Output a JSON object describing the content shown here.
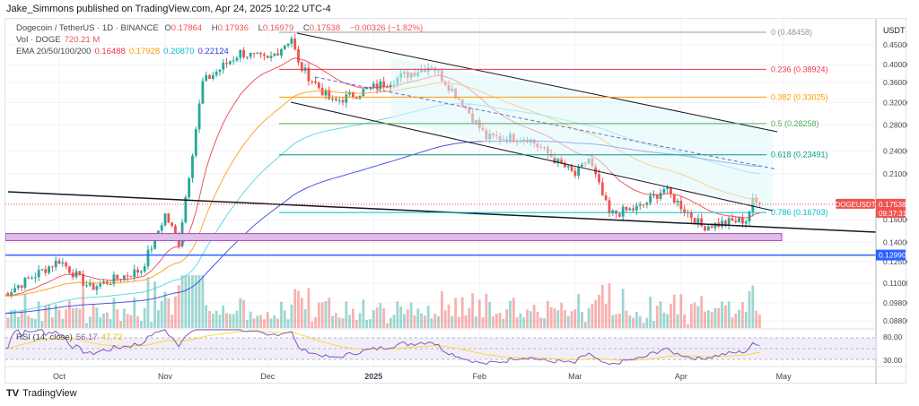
{
  "header": {
    "published": "Jake_Simmons published on TradingView.com, Apr 24, 2025 10:22 UTC-4"
  },
  "legend": {
    "symbol": "Dogecoin / TetherUS · 1D · BINANCE",
    "o_label": "O",
    "o": "0.17864",
    "h_label": "H",
    "h": "0.17936",
    "l_label": "L",
    "l": "0.16979",
    "c_label": "C",
    "c": "0.17538",
    "change": "−0.00326 (−1.82%)",
    "vol_label": "Vol · DOGE",
    "vol": "720.21 M",
    "ema_label": "EMA 20/50/100/200",
    "ema": [
      "0.16488",
      "0.17928",
      "0.20870",
      "0.22124"
    ],
    "rsi_label": "RSI (14, close)",
    "rsi": "56.17",
    "rsi_ma": "47.72"
  },
  "colors": {
    "up": "#26a69a",
    "down": "#ef5350",
    "ema": [
      "#f23645",
      "#ff9800",
      "#4dd0e1",
      "#2b3bdb"
    ],
    "rsi": "#7e57c2",
    "rsi_ma": "#fdd835",
    "blue_level": "#2962ff"
  },
  "price_axis": {
    "unit": "USDT",
    "ticks": [
      "0.45000",
      "0.40000",
      "0.36000",
      "0.32000",
      "0.28000",
      "0.24000",
      "0.21000",
      "0.16000",
      "0.14000",
      "0.12500",
      "0.11000",
      "0.09800",
      "0.08800"
    ],
    "scale": "log"
  },
  "rsi_axis": {
    "ticks": [
      "80.00",
      "30.00"
    ]
  },
  "time_axis": {
    "ticks": [
      {
        "label": "Oct",
        "date": "2024-10-01"
      },
      {
        "label": "Nov",
        "date": "2024-11-01"
      },
      {
        "label": "Dec",
        "date": "2024-12-01"
      },
      {
        "label": "2025",
        "date": "2025-01-01"
      },
      {
        "label": "Feb",
        "date": "2025-02-01"
      },
      {
        "label": "Mar",
        "date": "2025-03-01"
      },
      {
        "label": "Apr",
        "date": "2025-04-01"
      },
      {
        "label": "May",
        "date": "2025-05-01"
      }
    ]
  },
  "last_price": {
    "symbol": "DOGEUSDT",
    "price": "0.17538",
    "countdown": "09:37:31"
  },
  "level_line": {
    "price": 0.1299,
    "label": "0.12990"
  },
  "fib": [
    {
      "label": "0 (0.48458)",
      "price": 0.48458,
      "color": "#9598a1"
    },
    {
      "label": "0.236 (0.38924)",
      "price": 0.38924,
      "color": "#f23645"
    },
    {
      "label": "0.382 (0.33025)",
      "price": 0.33025,
      "color": "#ff9800"
    },
    {
      "label": "0.5 (0.28258)",
      "price": 0.28258,
      "color": "#4caf50"
    },
    {
      "label": "0.618 (0.23491)",
      "price": 0.23491,
      "color": "#089981"
    },
    {
      "label": "0.786 (0.16703)",
      "price": 0.16703,
      "color": "#00bcd4"
    }
  ],
  "support_zone": {
    "low": 0.1415,
    "high": 0.1475
  },
  "price_path": [
    [
      "2024-09-14",
      0.102
    ],
    [
      "2024-10-01",
      0.126
    ],
    [
      "2024-10-10",
      0.107
    ],
    [
      "2024-10-25",
      0.119
    ],
    [
      "2024-11-01",
      0.165
    ],
    [
      "2024-11-05",
      0.14
    ],
    [
      "2024-11-12",
      0.36
    ],
    [
      "2024-11-23",
      0.43
    ],
    [
      "2024-12-01",
      0.41
    ],
    [
      "2024-12-08",
      0.47
    ],
    [
      "2024-12-10",
      0.4
    ],
    [
      "2024-12-20",
      0.32
    ],
    [
      "2025-01-01",
      0.35
    ],
    [
      "2025-01-18",
      0.4
    ],
    [
      "2025-01-27",
      0.32
    ],
    [
      "2025-02-03",
      0.26
    ],
    [
      "2025-02-15",
      0.26
    ],
    [
      "2025-03-01",
      0.208
    ],
    [
      "2025-03-05",
      0.23
    ],
    [
      "2025-03-11",
      0.165
    ],
    [
      "2025-03-20",
      0.172
    ],
    [
      "2025-03-27",
      0.192
    ],
    [
      "2025-04-07",
      0.154
    ],
    [
      "2025-04-20",
      0.16
    ],
    [
      "2025-04-22",
      0.178
    ],
    [
      "2025-04-24",
      0.17538
    ]
  ],
  "brand": "TradingView"
}
